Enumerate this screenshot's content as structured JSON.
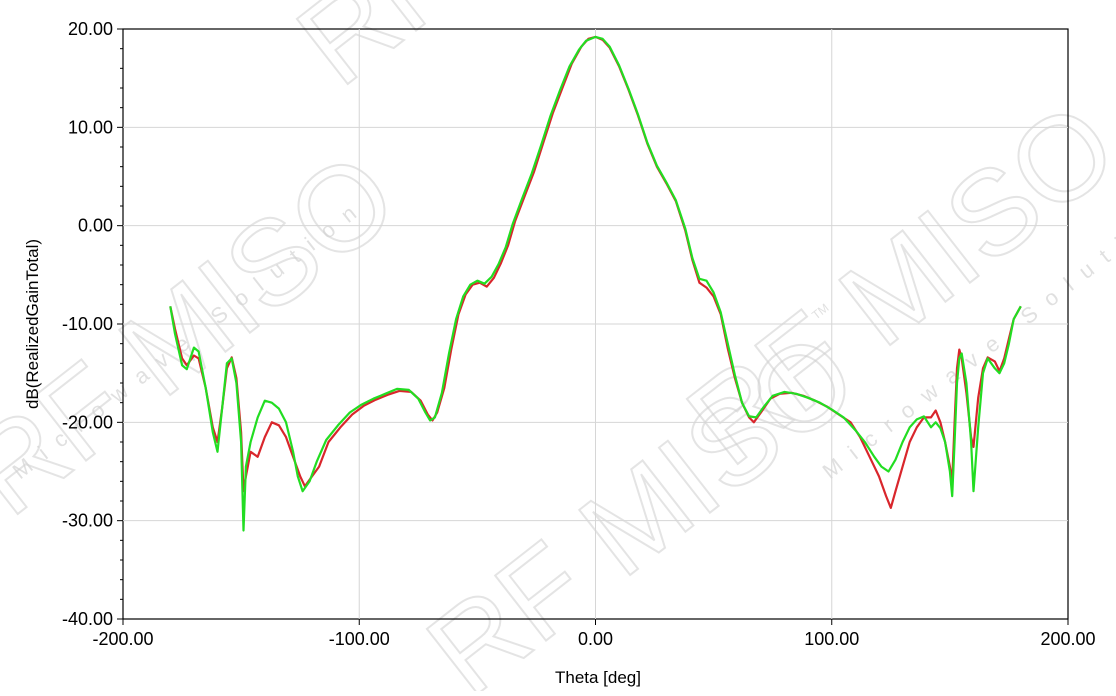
{
  "watermark": {
    "brand": "RF MISO",
    "tagline": "Microwave Solution",
    "tm": "TM"
  },
  "colors": {
    "series_red": "#d9262c",
    "series_green": "#22dd22",
    "grid": "#d6d6d6",
    "axis": "#000000"
  },
  "chart_data": {
    "type": "line",
    "title": "",
    "xlabel": "Theta [deg]",
    "ylabel": "dB(RealizedGainTotal)",
    "xlim": [
      -200,
      200
    ],
    "ylim": [
      -40,
      20
    ],
    "xticks": [
      -200,
      -100,
      0,
      100,
      200
    ],
    "yticks": [
      20,
      10,
      0,
      -10,
      -20,
      -30,
      -40
    ],
    "xtick_labels": [
      "-200.00",
      "-100.00",
      "0.00",
      "100.00",
      "200.00"
    ],
    "ytick_labels": [
      "20.00",
      "10.00",
      "0.00",
      "-10.00",
      "-20.00",
      "-30.00",
      "-40.00"
    ],
    "grid": true,
    "series": [
      {
        "color": "#d9262c",
        "points": [
          [
            -180,
            -8.2
          ],
          [
            -178,
            -10.5
          ],
          [
            -175,
            -13.5
          ],
          [
            -173,
            -14.2
          ],
          [
            -170,
            -13.2
          ],
          [
            -168,
            -13.5
          ],
          [
            -165,
            -16.5
          ],
          [
            -162,
            -20.5
          ],
          [
            -160,
            -22.0
          ],
          [
            -158,
            -18.5
          ],
          [
            -156,
            -14.5
          ],
          [
            -154,
            -13.4
          ],
          [
            -152,
            -15.5
          ],
          [
            -150,
            -21.0
          ],
          [
            -149,
            -27.0
          ],
          [
            -148,
            -25.5
          ],
          [
            -146,
            -23.0
          ],
          [
            -143,
            -23.5
          ],
          [
            -140,
            -21.5
          ],
          [
            -137,
            -20.0
          ],
          [
            -134,
            -20.3
          ],
          [
            -131,
            -21.5
          ],
          [
            -128,
            -23.5
          ],
          [
            -125,
            -25.5
          ],
          [
            -123,
            -26.5
          ],
          [
            -120,
            -25.5
          ],
          [
            -117,
            -24.5
          ],
          [
            -113,
            -22.0
          ],
          [
            -108,
            -20.5
          ],
          [
            -103,
            -19.2
          ],
          [
            -98,
            -18.3
          ],
          [
            -93,
            -17.7
          ],
          [
            -88,
            -17.2
          ],
          [
            -83,
            -16.8
          ],
          [
            -78,
            -16.9
          ],
          [
            -74,
            -17.8
          ],
          [
            -71,
            -19.2
          ],
          [
            -69,
            -19.8
          ],
          [
            -67,
            -19.0
          ],
          [
            -64,
            -16.5
          ],
          [
            -61,
            -12.5
          ],
          [
            -58,
            -9.0
          ],
          [
            -55,
            -7.0
          ],
          [
            -52,
            -6.0
          ],
          [
            -49,
            -5.8
          ],
          [
            -46,
            -6.2
          ],
          [
            -43,
            -5.3
          ],
          [
            -40,
            -3.8
          ],
          [
            -37,
            -2.0
          ],
          [
            -34,
            0.5
          ],
          [
            -30,
            3.0
          ],
          [
            -26,
            5.5
          ],
          [
            -22,
            8.5
          ],
          [
            -18,
            11.5
          ],
          [
            -14,
            14.0
          ],
          [
            -10,
            16.5
          ],
          [
            -6,
            18.2
          ],
          [
            -3,
            19.0
          ],
          [
            0,
            19.2
          ],
          [
            3,
            18.9
          ],
          [
            6,
            18.1
          ],
          [
            10,
            16.2
          ],
          [
            14,
            13.8
          ],
          [
            18,
            11.2
          ],
          [
            22,
            8.3
          ],
          [
            26,
            6.0
          ],
          [
            30,
            4.3
          ],
          [
            34,
            2.5
          ],
          [
            38,
            -0.5
          ],
          [
            41,
            -3.5
          ],
          [
            44,
            -5.8
          ],
          [
            47,
            -6.3
          ],
          [
            50,
            -7.2
          ],
          [
            53,
            -9.0
          ],
          [
            56,
            -12.5
          ],
          [
            59,
            -15.5
          ],
          [
            62,
            -18.0
          ],
          [
            65,
            -19.5
          ],
          [
            67,
            -20.0
          ],
          [
            70,
            -19.0
          ],
          [
            74,
            -17.6
          ],
          [
            78,
            -17.1
          ],
          [
            83,
            -17.0
          ],
          [
            88,
            -17.3
          ],
          [
            93,
            -17.8
          ],
          [
            98,
            -18.4
          ],
          [
            103,
            -19.2
          ],
          [
            108,
            -20.0
          ],
          [
            112,
            -21.5
          ],
          [
            116,
            -23.5
          ],
          [
            120,
            -25.5
          ],
          [
            123,
            -27.5
          ],
          [
            125,
            -28.7
          ],
          [
            127,
            -27.0
          ],
          [
            130,
            -24.5
          ],
          [
            133,
            -22.0
          ],
          [
            136,
            -20.5
          ],
          [
            139,
            -19.5
          ],
          [
            142,
            -19.5
          ],
          [
            144,
            -18.8
          ],
          [
            146,
            -20.0
          ],
          [
            148,
            -22.0
          ],
          [
            150,
            -24.5
          ],
          [
            151,
            -26.0
          ],
          [
            152,
            -20.0
          ],
          [
            153,
            -14.5
          ],
          [
            154,
            -12.6
          ],
          [
            155,
            -13.5
          ],
          [
            157,
            -17.0
          ],
          [
            159,
            -21.5
          ],
          [
            160,
            -22.5
          ],
          [
            162,
            -17.5
          ],
          [
            164,
            -14.5
          ],
          [
            166,
            -13.4
          ],
          [
            169,
            -13.8
          ],
          [
            171,
            -14.8
          ],
          [
            173,
            -13.5
          ],
          [
            175,
            -11.5
          ],
          [
            177,
            -9.5
          ],
          [
            180,
            -8.2
          ]
        ]
      },
      {
        "color": "#22dd22",
        "points": [
          [
            -180,
            -8.2
          ],
          [
            -178,
            -11.0
          ],
          [
            -175,
            -14.2
          ],
          [
            -173,
            -14.6
          ],
          [
            -170,
            -12.4
          ],
          [
            -168,
            -12.8
          ],
          [
            -165,
            -16.5
          ],
          [
            -162,
            -21.0
          ],
          [
            -160,
            -23.0
          ],
          [
            -158,
            -18.5
          ],
          [
            -156,
            -14.0
          ],
          [
            -154,
            -13.5
          ],
          [
            -152,
            -16.0
          ],
          [
            -150,
            -22.0
          ],
          [
            -149,
            -31.0
          ],
          [
            -148,
            -24.5
          ],
          [
            -146,
            -22.0
          ],
          [
            -143,
            -19.5
          ],
          [
            -140,
            -17.8
          ],
          [
            -137,
            -18.0
          ],
          [
            -134,
            -18.6
          ],
          [
            -131,
            -20.0
          ],
          [
            -128,
            -23.0
          ],
          [
            -126,
            -25.5
          ],
          [
            -124,
            -27.0
          ],
          [
            -121,
            -26.0
          ],
          [
            -118,
            -24.0
          ],
          [
            -114,
            -21.8
          ],
          [
            -109,
            -20.3
          ],
          [
            -104,
            -19.0
          ],
          [
            -99,
            -18.2
          ],
          [
            -94,
            -17.6
          ],
          [
            -89,
            -17.1
          ],
          [
            -84,
            -16.6
          ],
          [
            -79,
            -16.7
          ],
          [
            -75,
            -17.6
          ],
          [
            -72,
            -19.0
          ],
          [
            -70,
            -19.8
          ],
          [
            -68,
            -19.5
          ],
          [
            -65,
            -17.0
          ],
          [
            -62,
            -13.0
          ],
          [
            -59,
            -9.5
          ],
          [
            -56,
            -7.2
          ],
          [
            -53,
            -6.0
          ],
          [
            -50,
            -5.6
          ],
          [
            -47,
            -5.9
          ],
          [
            -44,
            -5.2
          ],
          [
            -41,
            -3.9
          ],
          [
            -38,
            -2.2
          ],
          [
            -35,
            0.2
          ],
          [
            -31,
            2.8
          ],
          [
            -27,
            5.3
          ],
          [
            -23,
            8.2
          ],
          [
            -19,
            11.2
          ],
          [
            -15,
            13.8
          ],
          [
            -11,
            16.2
          ],
          [
            -7,
            17.9
          ],
          [
            -4,
            18.8
          ],
          [
            0,
            19.2
          ],
          [
            3,
            19.0
          ],
          [
            6,
            18.2
          ],
          [
            10,
            16.3
          ],
          [
            14,
            13.9
          ],
          [
            18,
            11.3
          ],
          [
            22,
            8.4
          ],
          [
            26,
            6.1
          ],
          [
            30,
            4.4
          ],
          [
            34,
            2.6
          ],
          [
            38,
            -0.3
          ],
          [
            41,
            -3.3
          ],
          [
            44,
            -5.4
          ],
          [
            47,
            -5.6
          ],
          [
            50,
            -6.8
          ],
          [
            53,
            -8.8
          ],
          [
            56,
            -12.0
          ],
          [
            59,
            -15.2
          ],
          [
            62,
            -18.0
          ],
          [
            65,
            -19.4
          ],
          [
            68,
            -19.5
          ],
          [
            71,
            -18.5
          ],
          [
            75,
            -17.3
          ],
          [
            80,
            -16.9
          ],
          [
            85,
            -17.1
          ],
          [
            90,
            -17.5
          ],
          [
            95,
            -18.0
          ],
          [
            100,
            -18.7
          ],
          [
            105,
            -19.5
          ],
          [
            110,
            -20.8
          ],
          [
            114,
            -22.0
          ],
          [
            118,
            -23.5
          ],
          [
            121,
            -24.5
          ],
          [
            124,
            -25.0
          ],
          [
            127,
            -23.8
          ],
          [
            130,
            -22.0
          ],
          [
            133,
            -20.5
          ],
          [
            136,
            -19.7
          ],
          [
            139,
            -19.4
          ],
          [
            142,
            -20.5
          ],
          [
            144,
            -20.0
          ],
          [
            146,
            -20.6
          ],
          [
            148,
            -22.0
          ],
          [
            150,
            -25.0
          ],
          [
            151,
            -27.5
          ],
          [
            152,
            -22.0
          ],
          [
            153,
            -16.0
          ],
          [
            154,
            -13.5
          ],
          [
            155,
            -13.0
          ],
          [
            157,
            -16.0
          ],
          [
            159,
            -22.0
          ],
          [
            160,
            -27.0
          ],
          [
            162,
            -20.5
          ],
          [
            164,
            -15.0
          ],
          [
            166,
            -13.5
          ],
          [
            169,
            -14.5
          ],
          [
            171,
            -15.0
          ],
          [
            173,
            -14.0
          ],
          [
            175,
            -12.0
          ],
          [
            177,
            -9.5
          ],
          [
            180,
            -8.2
          ]
        ]
      }
    ]
  }
}
